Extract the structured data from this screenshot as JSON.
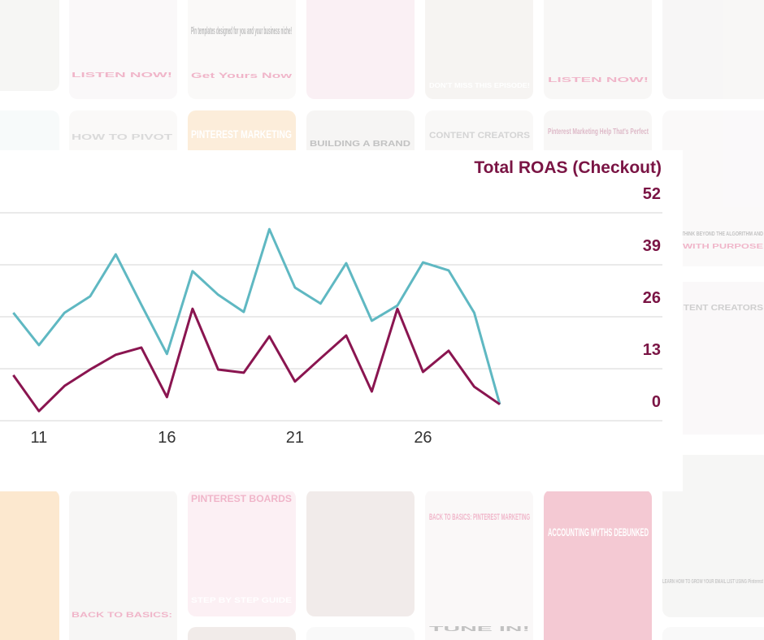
{
  "background": {
    "tiles": [
      {
        "text": "Pin templates designed for you and your business niche!"
      },
      {
        "text": "Get Yours Now"
      },
      {
        "text": "LISTEN NOW!"
      },
      {
        "text": "DON'T MISS THIS EPISODE!"
      },
      {
        "text": "LISTEN NOW!"
      },
      {
        "text": "HOW TO PIVOT"
      },
      {
        "text": "PINTEREST MARKETING"
      },
      {
        "text": "BUILDING A BRAND"
      },
      {
        "text": "CONTENT CREATORS"
      },
      {
        "text": "Pinterest Marketing Help That's Perfect"
      },
      {
        "text": "HOW TO THINK BEYOND THE ALGORITHM AND"
      },
      {
        "text": "PIN WITH PURPOSE"
      },
      {
        "text": "CONTENT CREATORS"
      },
      {
        "text": "PINTEREST BOARDS"
      },
      {
        "text": "STEP BY STEP GUIDE"
      },
      {
        "text": "BACK TO BASICS:"
      },
      {
        "text": "BACK TO BASICS: PINTEREST MARKETING"
      },
      {
        "text": "TUNE IN!"
      },
      {
        "text": "ACCOUNTING MYTHS DEBUNKED"
      },
      {
        "text": "LEARN HOW TO GROW YOUR EMAIL LIST USING Pinterest"
      }
    ]
  },
  "chart_data": {
    "type": "line",
    "title": "Total ROAS (Checkout)",
    "x": [
      10,
      11,
      12,
      13,
      14,
      15,
      16,
      17,
      18,
      19,
      20,
      21,
      22,
      23,
      24,
      25,
      26,
      27,
      28,
      29
    ],
    "xlim": [
      9.48,
      35.35
    ],
    "xticks": [
      11,
      16,
      21,
      26
    ],
    "ylim": [
      0,
      52
    ],
    "yticks": [
      0,
      13,
      26,
      39,
      52
    ],
    "grid": true,
    "series": [
      {
        "color": "#5fb8c2",
        "values": [
          27.0,
          18.9,
          27.0,
          31.1,
          41.6,
          29.0,
          16.7,
          37.4,
          31.5,
          27.2,
          47.9,
          33.3,
          29.3,
          39.4,
          25.0,
          28.8,
          39.6,
          37.6,
          27.0,
          4.1
        ]
      },
      {
        "color": "#8a1550",
        "values": [
          11.4,
          2.4,
          8.7,
          12.8,
          16.5,
          18.3,
          5.9,
          28.0,
          12.8,
          12.0,
          21.1,
          9.8,
          15.6,
          21.3,
          7.3,
          28.0,
          12.2,
          17.5,
          8.5,
          4.1
        ]
      }
    ]
  }
}
